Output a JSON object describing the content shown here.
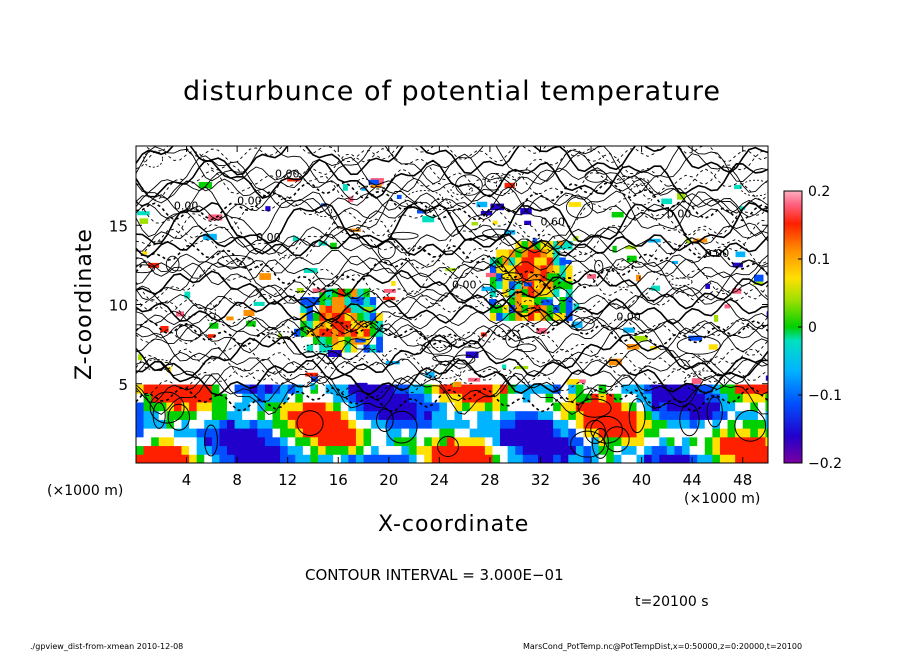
{
  "chart_data": {
    "type": "heatmap",
    "title": "disturbunce of potential temperature",
    "xlabel": "X-coordinate",
    "ylabel": "Z-coordinate",
    "x_unit": "(×1000 m)",
    "z_unit": "(×1000 m)",
    "xlim": [
      0,
      50
    ],
    "ylim": [
      0,
      20
    ],
    "x_ticks": [
      "4",
      "8",
      "12",
      "16",
      "20",
      "24",
      "28",
      "32",
      "36",
      "40",
      "44",
      "48"
    ],
    "y_ticks": [
      "5",
      "10",
      "15"
    ],
    "colorbar": {
      "range": [
        -0.2,
        0.2
      ],
      "tick_labels": [
        "0.2",
        "0.1",
        "0",
        "−0.1",
        "−0.2"
      ]
    },
    "contour_labels": [
      "0.00",
      "0.00",
      "0.00",
      "0.00",
      "0.00",
      "0.00",
      "0.60",
      "0.00",
      "0.00"
    ],
    "contour_interval_text": "CONTOUR INTERVAL = 3.000E−01",
    "time_text": "t=20100 s"
  },
  "footer": {
    "left": "./gpview_dist-from-xmean   2010-12-08",
    "right": "MarsCond_PotTemp.nc@PotTempDist,x=0:50000,z=0:20000,t=20100"
  }
}
